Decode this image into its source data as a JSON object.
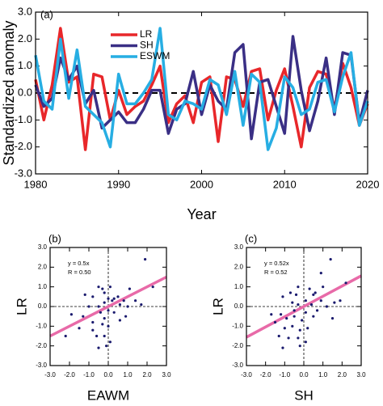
{
  "chart_data": [
    {
      "type": "line",
      "label": "(a)",
      "x_label": "Year",
      "y_label": "Standardized anomaly",
      "x": [
        1980,
        1981,
        1982,
        1983,
        1984,
        1985,
        1986,
        1987,
        1988,
        1989,
        1990,
        1991,
        1992,
        1993,
        1994,
        1995,
        1996,
        1997,
        1998,
        1999,
        2000,
        2001,
        2002,
        2003,
        2004,
        2005,
        2006,
        2007,
        2008,
        2009,
        2010,
        2011,
        2012,
        2013,
        2014,
        2015,
        2016,
        2017,
        2018,
        2019,
        2020
      ],
      "series": [
        {
          "name": "LR",
          "color": "#e8272a",
          "values": [
            0.5,
            -1.0,
            0.3,
            2.4,
            0.4,
            0.6,
            -2.1,
            0.7,
            0.6,
            -1.0,
            0.1,
            -0.8,
            -0.5,
            -0.3,
            0.3,
            1.0,
            -1.1,
            -0.4,
            -0.1,
            -1.1,
            0.4,
            0.6,
            -1.8,
            0.6,
            0.5,
            -0.5,
            0.8,
            0.9,
            -1.0,
            0.1,
            0.9,
            -0.5,
            -2.0,
            0.2,
            0.8,
            0.7,
            -0.6,
            1.1,
            0.2,
            -1.2,
            -0.4
          ]
        },
        {
          "name": "SH",
          "color": "#3a2f85",
          "values": [
            0.3,
            -0.5,
            -0.2,
            1.3,
            0.5,
            1.0,
            -0.4,
            0.1,
            -1.3,
            -1.0,
            -0.7,
            -1.1,
            -1.1,
            -0.6,
            0.1,
            0.1,
            -1.5,
            -0.6,
            -0.4,
            0.8,
            -0.8,
            0.3,
            -0.3,
            -0.6,
            1.5,
            1.8,
            -1.7,
            0.4,
            0.5,
            -0.5,
            -1.5,
            2.1,
            0.1,
            -1.4,
            -0.3,
            1.3,
            -0.8,
            1.5,
            1.4,
            -1.1,
            0.1
          ]
        },
        {
          "name": "ESWM",
          "color": "#27aee3",
          "values": [
            1.4,
            -0.3,
            -0.6,
            2.0,
            -0.2,
            1.6,
            -0.5,
            -0.8,
            -1.1,
            -2.0,
            0.7,
            -0.4,
            -0.4,
            0.0,
            0.5,
            2.4,
            -0.8,
            -1.0,
            -0.3,
            -0.4,
            -0.6,
            0.5,
            0.3,
            -0.8,
            0.8,
            -1.2,
            0.7,
            0.4,
            -2.1,
            -1.3,
            0.6,
            0.2,
            -0.8,
            -0.6,
            0.4,
            0.5,
            -0.7,
            0.6,
            1.5,
            -1.2,
            -0.3
          ]
        }
      ],
      "xlim": [
        1980,
        2020
      ],
      "xticks": [
        1980,
        1990,
        2000,
        2010,
        2020
      ],
      "ylim": [
        -3,
        3
      ],
      "yticks": [
        {
          "value": -3,
          "label": "-3.0"
        },
        {
          "value": -2,
          "label": "-2.0"
        },
        {
          "value": -1,
          "label": "-1.0"
        },
        {
          "value": 0,
          "label": "0.0"
        },
        {
          "value": 1,
          "label": "1.0"
        },
        {
          "value": 2,
          "label": "2.0"
        },
        {
          "value": 3,
          "label": "3.0"
        }
      ],
      "hlines": [
        0
      ],
      "legend": "upper-left"
    },
    {
      "type": "scatter",
      "label": "(b)",
      "x_label": "EAWM",
      "y_label": "LR",
      "color": "#1a1a6e",
      "fit_color": "#e86aa8",
      "annotations": [
        "y = 0.5x",
        "R = 0.50"
      ],
      "fit_slope": 0.5,
      "x": [
        1.9,
        2.3,
        -0.5,
        -0.3,
        0.1,
        0.3,
        1.1,
        -1.2,
        -0.2,
        -0.8,
        0.0,
        -0.2,
        0.2,
        0.8,
        1.4,
        1.7,
        -1.9,
        -1.3,
        -0.4,
        0.0,
        0.3,
        0.6,
        -0.8,
        -0.2,
        0.0,
        0.6,
        -1.5,
        -0.8,
        -0.6,
        -0.2,
        0.1,
        -0.1,
        -2.2,
        -0.5,
        0.9,
        0.5,
        -1.0,
        1.0,
        -0.5,
        -0.3
      ],
      "values": [
        2.4,
        1.0,
        1.0,
        0.9,
        1.0,
        0.4,
        0.9,
        0.6,
        0.7,
        0.5,
        0.4,
        0.2,
        0.3,
        0.3,
        0.3,
        0.1,
        -0.4,
        -0.5,
        -0.3,
        -0.2,
        -0.3,
        0.1,
        -0.8,
        -0.6,
        -1.0,
        -0.7,
        -1.1,
        -1.2,
        -1.5,
        -1.5,
        -1.8,
        -2.0,
        -1.5,
        0.0,
        -0.5,
        0.5,
        0.0,
        0.0,
        -2.1,
        -0.9
      ],
      "xlim": [
        -3,
        3
      ],
      "ylim": [
        -3,
        3
      ],
      "xticks": [
        {
          "value": -3,
          "label": "-3.0"
        },
        {
          "value": -2,
          "label": "-2.0"
        },
        {
          "value": -1,
          "label": "-1.0"
        },
        {
          "value": 0,
          "label": "0.0"
        },
        {
          "value": 1,
          "label": "1.0"
        },
        {
          "value": 2,
          "label": "2.0"
        },
        {
          "value": 3,
          "label": "3.0"
        }
      ],
      "yticks": [
        {
          "value": -3,
          "label": "-3.0"
        },
        {
          "value": -2,
          "label": "-2.0"
        },
        {
          "value": -1,
          "label": "-1.0"
        },
        {
          "value": 0,
          "label": "0.0"
        },
        {
          "value": 1,
          "label": "1.0"
        },
        {
          "value": 2,
          "label": "2.0"
        },
        {
          "value": 3,
          "label": "3.0"
        }
      ],
      "hlines": [
        0
      ],
      "vlines": [
        0
      ]
    },
    {
      "type": "scatter",
      "label": "(c)",
      "x_label": "SH",
      "y_label": "LR",
      "color": "#1a1a6e",
      "fit_color": "#e86aa8",
      "annotations": [
        "y = 0.52x",
        "R = 0.52"
      ],
      "fit_slope": 0.52,
      "x": [
        1.4,
        0.9,
        2.2,
        -0.3,
        -0.7,
        0.3,
        0.6,
        1.0,
        0.5,
        -0.4,
        -1.1,
        0.1,
        0.9,
        1.9,
        1.6,
        -0.6,
        -0.3,
        -1.7,
        -1.2,
        -0.9,
        -0.5,
        0.1,
        0.5,
        1.5,
        -1.5,
        -1.0,
        -0.6,
        -0.2,
        0.2,
        -1.3,
        -0.8,
        -0.3,
        -1.1,
        -0.2,
        0.1,
        0.7,
        -0.1,
        1.2,
        -0.5,
        0.4
      ],
      "values": [
        2.4,
        1.7,
        1.2,
        1.0,
        0.7,
        0.9,
        0.7,
        1.0,
        0.6,
        0.6,
        0.5,
        0.3,
        0.3,
        0.3,
        0.2,
        0.2,
        0.1,
        -0.4,
        -0.4,
        -0.6,
        -0.5,
        -0.3,
        -0.5,
        -0.6,
        -0.8,
        -1.1,
        -1.0,
        -1.2,
        -1.1,
        -1.5,
        -1.6,
        -1.6,
        -2.1,
        -2.0,
        -1.8,
        -0.2,
        -0.7,
        0.0,
        -0.2,
        0.1
      ],
      "xlim": [
        -3,
        3
      ],
      "ylim": [
        -3,
        3
      ],
      "xticks": [
        {
          "value": -3,
          "label": "-3.0"
        },
        {
          "value": -2,
          "label": "-2.0"
        },
        {
          "value": -1,
          "label": "-1.0"
        },
        {
          "value": 0,
          "label": "0.0"
        },
        {
          "value": 1,
          "label": "1.0"
        },
        {
          "value": 2,
          "label": "2.0"
        },
        {
          "value": 3,
          "label": "3.0"
        }
      ],
      "yticks": [
        {
          "value": -3,
          "label": "-3.0"
        },
        {
          "value": -2,
          "label": "-2.0"
        },
        {
          "value": -1,
          "label": "-1.0"
        },
        {
          "value": 0,
          "label": "0.0"
        },
        {
          "value": 1,
          "label": "1.0"
        },
        {
          "value": 2,
          "label": "2.0"
        },
        {
          "value": 3,
          "label": "3.0"
        }
      ],
      "hlines": [
        0
      ],
      "vlines": [
        0
      ]
    }
  ]
}
